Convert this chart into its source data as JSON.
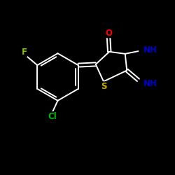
{
  "bg_color": "#000000",
  "bond_color": "#ffffff",
  "atom_colors": {
    "O": "#ff0000",
    "N": "#0000cd",
    "S": "#ccaa00",
    "Cl": "#00bb00",
    "F": "#88bb00",
    "C": "#ffffff",
    "H": "#ffffff"
  },
  "fig_size": [
    2.5,
    2.5
  ],
  "dpi": 100,
  "lw": 1.4,
  "fontsize": 8.5
}
